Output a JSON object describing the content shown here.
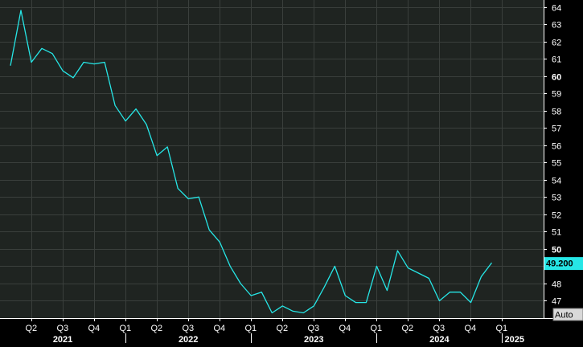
{
  "colors": {
    "background": "#000000",
    "plot_background": "#1f2421",
    "grid": "#3a3f3c",
    "line": "#26e6e6",
    "text": "#ffffff",
    "last_value_bg": "#26e6e6",
    "last_value_text": "#000000"
  },
  "chart_data": {
    "type": "line",
    "title": "",
    "xlabel": "",
    "ylabel": "",
    "ylim": [
      46,
      64.4
    ],
    "y_ticks": [
      47,
      48,
      49,
      50,
      51,
      52,
      53,
      54,
      55,
      56,
      57,
      58,
      59,
      60,
      61,
      62,
      63,
      64
    ],
    "y_tick_labels": [
      "47",
      "48",
      "",
      "50",
      "51",
      "52",
      "53",
      "54",
      "55",
      "56",
      "57",
      "58",
      "59",
      "60",
      "61",
      "62",
      "63",
      "64"
    ],
    "y_bold_ticks": [
      50,
      60
    ],
    "grid": true,
    "quarter_labels": [
      "Q2",
      "Q3",
      "Q4",
      "Q1",
      "Q2",
      "Q3",
      "Q4",
      "Q1",
      "Q2",
      "Q3",
      "Q4",
      "Q1",
      "Q2",
      "Q3",
      "Q4",
      "Q1"
    ],
    "quarter_dates": [
      "2021-04",
      "2021-07",
      "2021-10",
      "2022-01",
      "2022-04",
      "2022-07",
      "2022-10",
      "2023-01",
      "2023-04",
      "2023-07",
      "2023-10",
      "2024-01",
      "2024-04",
      "2024-07",
      "2024-10",
      "2025-01"
    ],
    "year_labels": [
      "2021",
      "2022",
      "2023",
      "2024",
      "2025"
    ],
    "last_value_label": "49.200",
    "auto_label": "Auto",
    "series": [
      {
        "x": [
          "2021-02",
          "2021-03",
          "2021-04",
          "2021-05",
          "2021-06",
          "2021-07",
          "2021-08",
          "2021-09",
          "2021-10",
          "2021-11",
          "2021-12",
          "2022-01",
          "2022-02",
          "2022-03",
          "2022-04",
          "2022-05",
          "2022-06",
          "2022-07",
          "2022-08",
          "2022-09",
          "2022-10",
          "2022-11",
          "2022-12",
          "2023-01",
          "2023-02",
          "2023-03",
          "2023-04",
          "2023-05",
          "2023-06",
          "2023-07",
          "2023-08",
          "2023-09",
          "2023-10",
          "2023-11",
          "2023-12",
          "2024-01",
          "2024-02",
          "2024-03",
          "2024-04",
          "2024-05",
          "2024-06",
          "2024-07",
          "2024-08",
          "2024-09",
          "2024-10",
          "2024-11",
          "2024-12"
        ],
        "values": [
          60.6,
          63.8,
          60.8,
          61.6,
          61.3,
          60.3,
          59.9,
          60.8,
          60.7,
          60.8,
          58.3,
          57.4,
          58.1,
          57.2,
          55.4,
          55.9,
          53.5,
          52.9,
          53.0,
          51.1,
          50.4,
          49.0,
          48.0,
          47.3,
          47.5,
          46.3,
          46.7,
          46.4,
          46.3,
          46.7,
          47.8,
          49.0,
          47.3,
          46.9,
          46.9,
          49.0,
          47.6,
          49.9,
          48.9,
          48.6,
          48.3,
          47.0,
          47.5,
          47.5,
          46.9,
          48.4,
          49.2
        ]
      }
    ]
  }
}
